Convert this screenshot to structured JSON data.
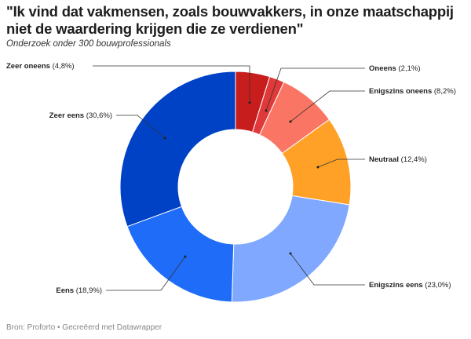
{
  "title": "\"Ik vind dat vakmensen, zoals bouwvakkers, in onze maatschappij niet de waardering krijgen die ze verdienen\"",
  "subtitle": "Onderzoek onder 300 bouwprofessionals",
  "footer": "Bron: Proforto • Gecreëerd met Datawrapper",
  "chart_data": {
    "type": "pie",
    "donut": true,
    "title": "\"Ik vind dat vakmensen, zoals bouwvakkers, in onze maatschappij niet de waardering krijgen die ze verdienen\"",
    "subtitle": "Onderzoek onder 300 bouwprofessionals",
    "slices": [
      {
        "name": "Zeer oneens",
        "value": 4.8,
        "label": "(4,8%)",
        "color": "#c71e1d"
      },
      {
        "name": "Oneens",
        "value": 2.1,
        "label": "(2,1%)",
        "color": "#e0393a"
      },
      {
        "name": "Enigszins oneens",
        "value": 8.2,
        "label": "(8,2%)",
        "color": "#fa7564"
      },
      {
        "name": "Neutraal",
        "value": 12.4,
        "label": "(12,4%)",
        "color": "#ffa126"
      },
      {
        "name": "Enigszins eens",
        "value": 23.0,
        "label": "(23,0%)",
        "color": "#80a8ff"
      },
      {
        "name": "Eens",
        "value": 18.9,
        "label": "(18,9%)",
        "color": "#1f6cf8"
      },
      {
        "name": "Zeer eens",
        "value": 30.6,
        "label": "(30,6%)",
        "color": "#0042c6"
      }
    ]
  }
}
